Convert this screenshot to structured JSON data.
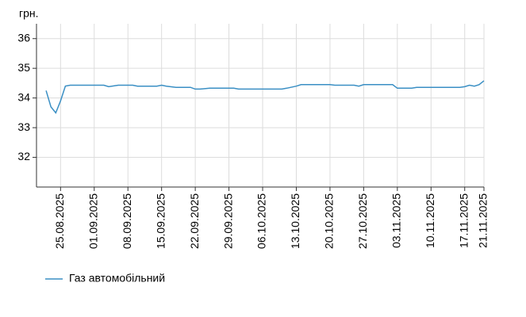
{
  "chart_data": {
    "type": "line",
    "y_label": "грн.",
    "xlim": [
      "20.08.2025",
      "21.11.2025"
    ],
    "xticks": [
      "25.08.2025",
      "01.09.2025",
      "08.09.2025",
      "15.09.2025",
      "22.09.2025",
      "29.09.2025",
      "06.10.2025",
      "13.10.2025",
      "20.10.2025",
      "27.10.2025",
      "03.11.2025",
      "10.11.2025",
      "17.11.2025",
      "21.11.2025"
    ],
    "ylim": [
      31,
      36.5
    ],
    "yticks": [
      32,
      33,
      34,
      35,
      36
    ],
    "grid": true,
    "legend": "bottom-left",
    "x": [
      "22.08.2025",
      "23.08.2025",
      "24.08.2025",
      "25.08.2025",
      "26.08.2025",
      "27.08.2025",
      "03.09.2025",
      "04.09.2025",
      "06.09.2025",
      "09.09.2025",
      "10.09.2025",
      "14.09.2025",
      "15.09.2025",
      "16.09.2025",
      "18.09.2025",
      "21.09.2025",
      "22.09.2025",
      "23.09.2025",
      "25.09.2025",
      "30.09.2025",
      "01.10.2025",
      "10.10.2025",
      "11.10.2025",
      "13.10.2025",
      "14.10.2025",
      "20.10.2025",
      "21.10.2025",
      "25.10.2025",
      "26.10.2025",
      "27.10.2025",
      "28.10.2025",
      "02.11.2025",
      "03.11.2025",
      "06.11.2025",
      "07.11.2025",
      "16.11.2025",
      "17.11.2025",
      "18.11.2025",
      "19.11.2025",
      "20.11.2025",
      "21.11.2025"
    ],
    "series": [
      {
        "name": "Газ автомобільний",
        "color": "#3a8fc4",
        "values": [
          34.25,
          33.7,
          33.5,
          33.9,
          34.4,
          34.43,
          34.43,
          34.38,
          34.43,
          34.43,
          34.4,
          34.4,
          34.43,
          34.4,
          34.36,
          34.36,
          34.3,
          34.3,
          34.33,
          34.33,
          34.3,
          34.3,
          34.33,
          34.4,
          34.45,
          34.45,
          34.43,
          34.43,
          34.4,
          34.45,
          34.45,
          34.45,
          34.33,
          34.33,
          34.36,
          34.36,
          34.38,
          34.43,
          34.4,
          34.45,
          34.58
        ]
      }
    ]
  }
}
